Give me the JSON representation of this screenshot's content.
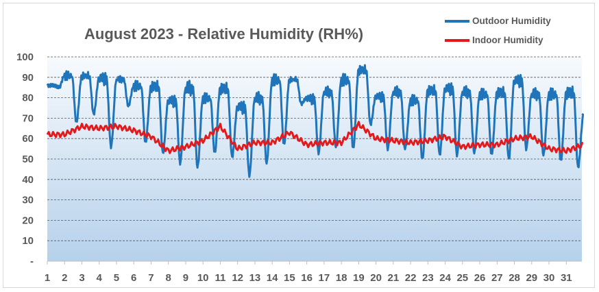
{
  "chart_data": {
    "type": "line",
    "title": "August 2023 - Relative Humidity (RH%)",
    "xlabel": "",
    "ylabel": "",
    "x_tick_labels": [
      "1",
      "2",
      "3",
      "4",
      "5",
      "6",
      "7",
      "8",
      "9",
      "10",
      "11",
      "12",
      "13",
      "14",
      "15",
      "16",
      "17",
      "18",
      "19",
      "20",
      "21",
      "22",
      "23",
      "24",
      "25",
      "26",
      "27",
      "28",
      "29",
      "30",
      "31"
    ],
    "y_tick_labels": [
      "-",
      "10",
      "20",
      "30",
      "40",
      "50",
      "60",
      "70",
      "80",
      "90",
      "100"
    ],
    "ylim": [
      0,
      100
    ],
    "xlim": [
      1,
      31.9
    ],
    "grid": true,
    "legend_position": "top-right",
    "series": [
      {
        "name": "Outdoor Humidity",
        "color": "#1f74ba",
        "day_max": [
          86,
          91,
          91,
          90,
          89,
          86,
          86,
          79,
          85,
          80,
          85,
          76,
          80,
          89,
          89,
          80,
          83,
          89,
          94,
          81,
          83,
          79,
          84,
          85,
          83,
          82,
          83,
          89,
          82,
          82,
          83
        ],
        "day_min": [
          85,
          68,
          72,
          56,
          76,
          58,
          53,
          48,
          46,
          53,
          51,
          42,
          48,
          57,
          77,
          53,
          56,
          55,
          67,
          55,
          55,
          50,
          52,
          52,
          53,
          52,
          50,
          55,
          52,
          49,
          46
        ],
        "end_value": 72
      },
      {
        "name": "Indoor Humidity",
        "color": "#e31a1c",
        "day_values": [
          62,
          62,
          66,
          65,
          66,
          64,
          61,
          54,
          56,
          59,
          66,
          55,
          58,
          58,
          63,
          57,
          58,
          58,
          67,
          60,
          59,
          58,
          59,
          61,
          56,
          57,
          57,
          60,
          61,
          55,
          54
        ],
        "end_value": 57
      }
    ]
  }
}
